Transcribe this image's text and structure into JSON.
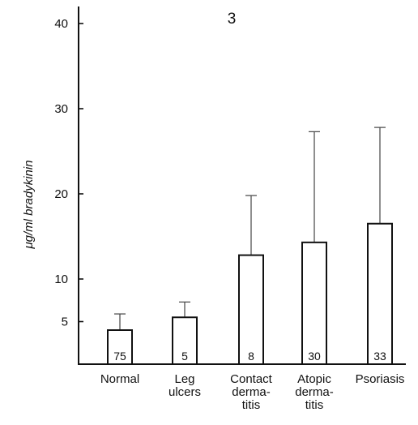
{
  "chart_data": {
    "type": "bar",
    "panel_label": "3",
    "ylabel": "μg/ml bradykinin",
    "ylim": [
      0,
      42
    ],
    "yticks": [
      5,
      10,
      20,
      30,
      40
    ],
    "ytick_labels": [
      "5",
      "10",
      "20",
      "30",
      "40"
    ],
    "categories": [
      [
        "Normal"
      ],
      [
        "Leg",
        "ulcers"
      ],
      [
        "Contact",
        "derma-",
        "titis"
      ],
      [
        "Atopic",
        "derma-",
        "titis"
      ],
      [
        "Psoriasis"
      ]
    ],
    "values": [
      4.0,
      5.5,
      12.8,
      14.3,
      16.5
    ],
    "error_upper": [
      5.9,
      7.3,
      19.8,
      27.3,
      27.8
    ],
    "n_labels": [
      "75",
      "5",
      "8",
      "30",
      "33"
    ],
    "grid": false,
    "error_bars": "upper only"
  }
}
